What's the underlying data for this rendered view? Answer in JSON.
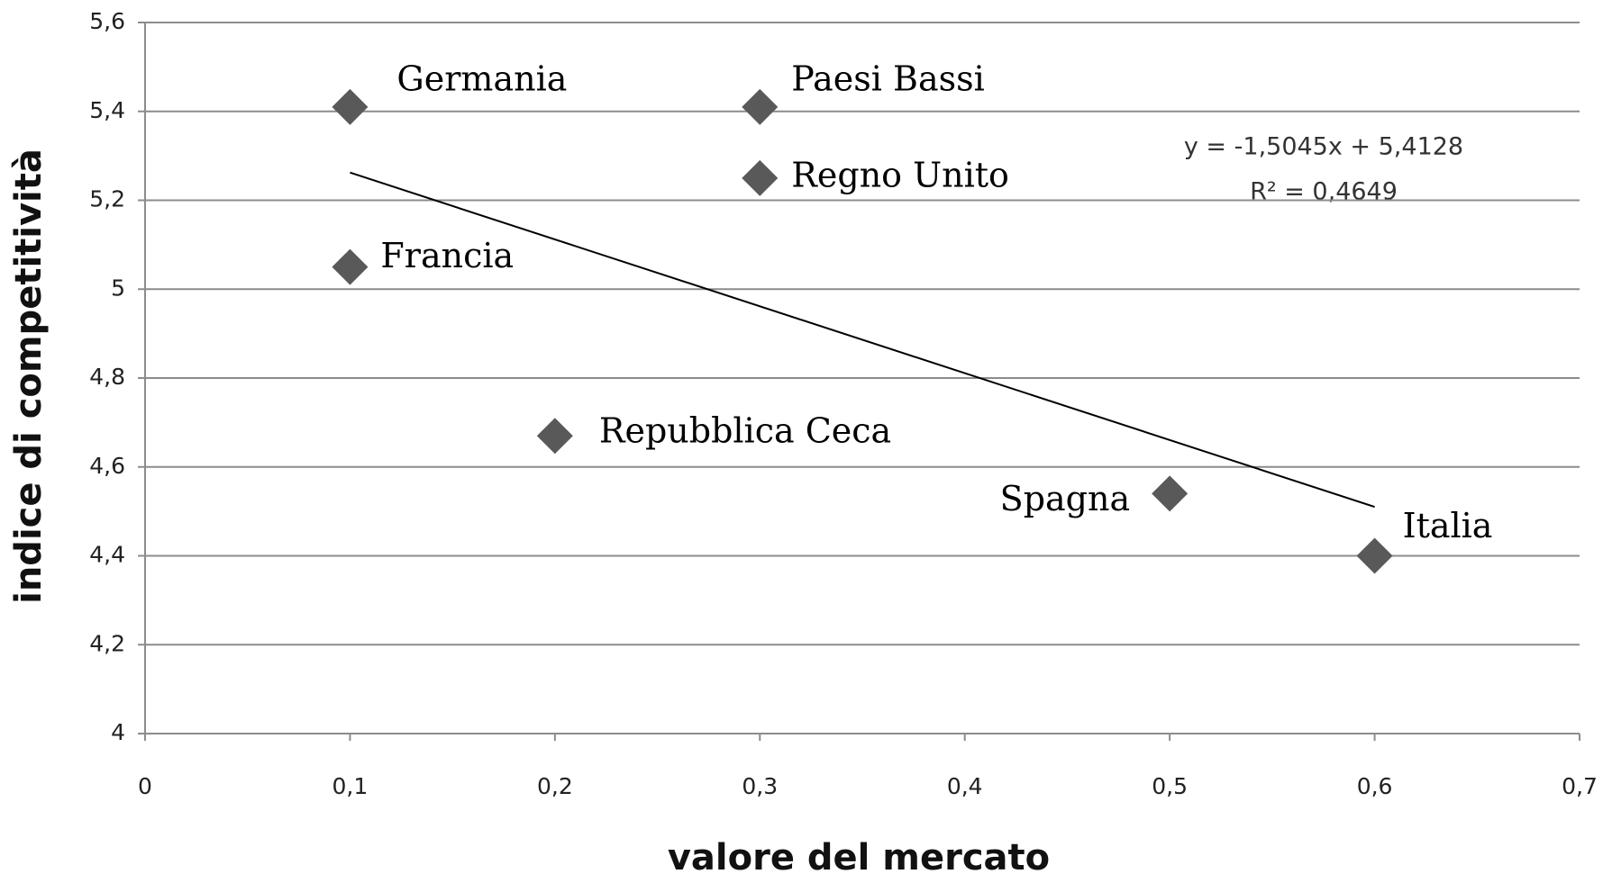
{
  "chart_data": {
    "type": "scatter",
    "x_label": "valore del mercato",
    "y_label": "indice di competitività",
    "points": [
      "Germania",
      "Paesi Bassi",
      "Regno Unito",
      "Francia",
      "Repubblica Ceca",
      "Spagna",
      "Italia"
    ],
    "x": [
      0.1,
      0.3,
      0.3,
      0.1,
      0.2,
      0.5,
      0.6
    ],
    "y": [
      5.41,
      5.41,
      5.25,
      5.05,
      4.67,
      4.54,
      4.4
    ],
    "color": "#595959",
    "trendline": {
      "slope": -1.5045,
      "intercept": 5.4128,
      "equation": "y = -1,5045x  + 5,4128",
      "r2": "R² = 0,4649"
    },
    "xlim": [
      0,
      0.7
    ],
    "xticks": [
      0,
      {
        "value": 0.1,
        "label": "0,1"
      },
      {
        "value": 0.2,
        "label": "0,2"
      },
      {
        "value": 0.3,
        "label": "0,3"
      },
      {
        "value": 0.4,
        "label": "0,4"
      },
      {
        "value": 0.5,
        "label": "0,5"
      },
      {
        "value": 0.6,
        "label": "0,6"
      },
      {
        "value": 0.7,
        "label": "0,7"
      }
    ],
    "ylim": [
      4,
      5.6
    ],
    "yticks": [
      4,
      {
        "value": 4.2,
        "label": "4,2"
      },
      {
        "value": 4.4,
        "label": "4,4"
      },
      {
        "value": 4.6,
        "label": "4,6"
      },
      {
        "value": 4.8,
        "label": "4,8"
      },
      5,
      {
        "value": 5.2,
        "label": "5,2"
      },
      {
        "value": 5.4,
        "label": "5,4"
      },
      {
        "value": 5.6,
        "label": "5,6"
      }
    ],
    "grid": true
  }
}
